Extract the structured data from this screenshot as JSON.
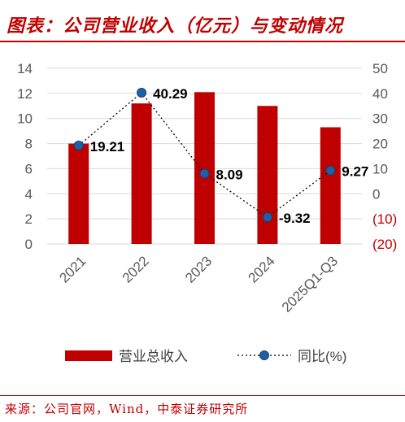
{
  "header": {
    "title": "图表：公司营业收入（亿元）与变动情况"
  },
  "chart_data": {
    "type": "bar",
    "categories": [
      "2021",
      "2022",
      "2023",
      "2024",
      "2025Q1-Q3"
    ],
    "series": [
      {
        "name": "营业总收入",
        "type": "bar",
        "axis": "left",
        "values": [
          8.0,
          11.2,
          12.1,
          11.0,
          9.3
        ],
        "color": "#c00000"
      },
      {
        "name": "同比(%)",
        "type": "line",
        "axis": "right",
        "values": [
          19.21,
          40.29,
          8.09,
          -9.32,
          9.27
        ],
        "labels": [
          "19.21",
          "40.29",
          "8.09",
          "-9.32",
          "9.27"
        ],
        "color": "#1f5fa8",
        "line_style": "dotted"
      }
    ],
    "y_left": {
      "ylim": [
        0,
        14
      ],
      "ticks": [
        "0",
        "2",
        "4",
        "6",
        "8",
        "10",
        "12",
        "14"
      ]
    },
    "y_right": {
      "ylim": [
        -20,
        50
      ],
      "ticks": [
        "(20)",
        "(10)",
        "0",
        "10",
        "20",
        "30",
        "40",
        "50"
      ],
      "tick_values": [
        -20,
        -10,
        0,
        10,
        20,
        30,
        40,
        50
      ],
      "negative_color": "#c00000"
    },
    "grid": true,
    "legend_position": "bottom"
  },
  "footer": {
    "source": "来源：公司官网，Wind，中泰证券研究所"
  }
}
